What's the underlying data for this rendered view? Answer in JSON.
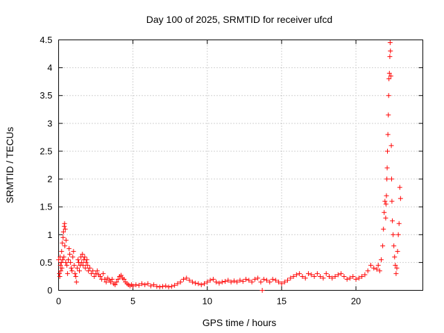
{
  "chart_data": {
    "type": "scatter",
    "title": "Day 100 of 2025, SRMTID for receiver ufcd",
    "xlabel": "GPS time / hours",
    "ylabel": "SRMTID / TECUs",
    "xlim": [
      0,
      24.5
    ],
    "ylim": [
      0,
      4.5
    ],
    "xticks": [
      0,
      5,
      10,
      15,
      20
    ],
    "xtick_labels": [
      "0",
      "5",
      "10",
      "15",
      "20"
    ],
    "yticks": [
      0,
      0.5,
      1,
      1.5,
      2,
      2.5,
      3,
      3.5,
      4,
      4.5
    ],
    "ytick_labels": [
      "0",
      "0.5",
      "1",
      "1.5",
      "2",
      "2.5",
      "3",
      "3.5",
      "4",
      "4.5"
    ],
    "grid": true,
    "marker": "+",
    "color": "#ff0000",
    "series": [
      {
        "name": "SRMTID",
        "points": [
          [
            0.0,
            0.55
          ],
          [
            0.05,
            0.3
          ],
          [
            0.08,
            0.25
          ],
          [
            0.1,
            0.6
          ],
          [
            0.12,
            0.45
          ],
          [
            0.15,
            0.35
          ],
          [
            0.18,
            0.5
          ],
          [
            0.2,
            0.7
          ],
          [
            0.22,
            0.4
          ],
          [
            0.25,
            0.85
          ],
          [
            0.28,
            0.55
          ],
          [
            0.3,
            0.95
          ],
          [
            0.32,
            1.05
          ],
          [
            0.35,
            0.6
          ],
          [
            0.38,
            1.15
          ],
          [
            0.4,
            1.2
          ],
          [
            0.42,
            0.8
          ],
          [
            0.45,
            1.1
          ],
          [
            0.48,
            0.5
          ],
          [
            0.5,
            0.9
          ],
          [
            0.55,
            0.45
          ],
          [
            0.6,
            0.3
          ],
          [
            0.65,
            0.55
          ],
          [
            0.7,
            0.75
          ],
          [
            0.75,
            0.65
          ],
          [
            0.8,
            0.5
          ],
          [
            0.85,
            0.4
          ],
          [
            0.9,
            0.35
          ],
          [
            0.95,
            0.6
          ],
          [
            1.0,
            0.7
          ],
          [
            1.05,
            0.45
          ],
          [
            1.1,
            0.3
          ],
          [
            1.15,
            0.25
          ],
          [
            1.2,
            0.15
          ],
          [
            1.25,
            0.4
          ],
          [
            1.3,
            0.55
          ],
          [
            1.35,
            0.5
          ],
          [
            1.4,
            0.35
          ],
          [
            1.45,
            0.45
          ],
          [
            1.5,
            0.6
          ],
          [
            1.55,
            0.5
          ],
          [
            1.6,
            0.65
          ],
          [
            1.65,
            0.45
          ],
          [
            1.7,
            0.55
          ],
          [
            1.75,
            0.6
          ],
          [
            1.8,
            0.4
          ],
          [
            1.85,
            0.5
          ],
          [
            1.9,
            0.55
          ],
          [
            1.95,
            0.45
          ],
          [
            2.0,
            0.35
          ],
          [
            2.1,
            0.4
          ],
          [
            2.2,
            0.3
          ],
          [
            2.3,
            0.35
          ],
          [
            2.4,
            0.25
          ],
          [
            2.5,
            0.3
          ],
          [
            2.6,
            0.35
          ],
          [
            2.7,
            0.28
          ],
          [
            2.8,
            0.25
          ],
          [
            2.9,
            0.2
          ],
          [
            3.0,
            0.3
          ],
          [
            3.1,
            0.2
          ],
          [
            3.2,
            0.15
          ],
          [
            3.3,
            0.22
          ],
          [
            3.4,
            0.18
          ],
          [
            3.5,
            0.15
          ],
          [
            3.6,
            0.2
          ],
          [
            3.7,
            0.12
          ],
          [
            3.8,
            0.1
          ],
          [
            3.9,
            0.15
          ],
          [
            4.0,
            0.2
          ],
          [
            4.1,
            0.25
          ],
          [
            4.2,
            0.27
          ],
          [
            4.3,
            0.22
          ],
          [
            4.4,
            0.2
          ],
          [
            4.5,
            0.15
          ],
          [
            4.6,
            0.12
          ],
          [
            4.7,
            0.1
          ],
          [
            4.8,
            0.08
          ],
          [
            4.9,
            0.1
          ],
          [
            5.0,
            0.08
          ],
          [
            5.2,
            0.1
          ],
          [
            5.4,
            0.09
          ],
          [
            5.6,
            0.12
          ],
          [
            5.8,
            0.1
          ],
          [
            6.0,
            0.12
          ],
          [
            6.2,
            0.08
          ],
          [
            6.4,
            0.1
          ],
          [
            6.6,
            0.07
          ],
          [
            6.8,
            0.06
          ],
          [
            7.0,
            0.07
          ],
          [
            7.2,
            0.08
          ],
          [
            7.4,
            0.06
          ],
          [
            7.6,
            0.07
          ],
          [
            7.8,
            0.09
          ],
          [
            8.0,
            0.12
          ],
          [
            8.2,
            0.15
          ],
          [
            8.4,
            0.2
          ],
          [
            8.6,
            0.22
          ],
          [
            8.8,
            0.18
          ],
          [
            9.0,
            0.15
          ],
          [
            9.2,
            0.13
          ],
          [
            9.4,
            0.12
          ],
          [
            9.6,
            0.1
          ],
          [
            9.8,
            0.12
          ],
          [
            10.0,
            0.15
          ],
          [
            10.2,
            0.18
          ],
          [
            10.4,
            0.2
          ],
          [
            10.6,
            0.15
          ],
          [
            10.8,
            0.13
          ],
          [
            11.0,
            0.15
          ],
          [
            11.2,
            0.16
          ],
          [
            11.4,
            0.18
          ],
          [
            11.6,
            0.15
          ],
          [
            11.8,
            0.17
          ],
          [
            12.0,
            0.15
          ],
          [
            12.2,
            0.18
          ],
          [
            12.4,
            0.16
          ],
          [
            12.6,
            0.2
          ],
          [
            12.8,
            0.18
          ],
          [
            13.0,
            0.15
          ],
          [
            13.2,
            0.2
          ],
          [
            13.4,
            0.22
          ],
          [
            13.6,
            0.15
          ],
          [
            13.7,
            0.0
          ],
          [
            13.8,
            0.2
          ],
          [
            14.0,
            0.18
          ],
          [
            14.2,
            0.15
          ],
          [
            14.4,
            0.2
          ],
          [
            14.6,
            0.18
          ],
          [
            14.8,
            0.15
          ],
          [
            15.0,
            0.12
          ],
          [
            15.2,
            0.15
          ],
          [
            15.4,
            0.18
          ],
          [
            15.6,
            0.22
          ],
          [
            15.8,
            0.25
          ],
          [
            16.0,
            0.28
          ],
          [
            16.2,
            0.3
          ],
          [
            16.4,
            0.25
          ],
          [
            16.6,
            0.22
          ],
          [
            16.8,
            0.3
          ],
          [
            17.0,
            0.28
          ],
          [
            17.2,
            0.25
          ],
          [
            17.4,
            0.3
          ],
          [
            17.6,
            0.25
          ],
          [
            17.8,
            0.22
          ],
          [
            18.0,
            0.3
          ],
          [
            18.2,
            0.25
          ],
          [
            18.4,
            0.22
          ],
          [
            18.6,
            0.25
          ],
          [
            18.8,
            0.28
          ],
          [
            19.0,
            0.3
          ],
          [
            19.2,
            0.25
          ],
          [
            19.4,
            0.2
          ],
          [
            19.6,
            0.22
          ],
          [
            19.8,
            0.25
          ],
          [
            20.0,
            0.2
          ],
          [
            20.2,
            0.22
          ],
          [
            20.4,
            0.25
          ],
          [
            20.6,
            0.28
          ],
          [
            20.8,
            0.35
          ],
          [
            21.0,
            0.45
          ],
          [
            21.2,
            0.4
          ],
          [
            21.4,
            0.38
          ],
          [
            21.5,
            0.45
          ],
          [
            21.6,
            0.35
          ],
          [
            21.7,
            0.55
          ],
          [
            21.8,
            0.8
          ],
          [
            21.85,
            1.1
          ],
          [
            21.9,
            1.4
          ],
          [
            21.95,
            1.6
          ],
          [
            22.0,
            1.3
          ],
          [
            22.02,
            1.55
          ],
          [
            22.05,
            1.7
          ],
          [
            22.08,
            2.0
          ],
          [
            22.1,
            2.2
          ],
          [
            22.12,
            2.5
          ],
          [
            22.15,
            2.8
          ],
          [
            22.18,
            3.15
          ],
          [
            22.2,
            3.5
          ],
          [
            22.22,
            3.8
          ],
          [
            22.25,
            3.9
          ],
          [
            22.28,
            4.2
          ],
          [
            22.3,
            4.45
          ],
          [
            22.32,
            4.3
          ],
          [
            22.35,
            3.85
          ],
          [
            22.38,
            2.6
          ],
          [
            22.4,
            2.0
          ],
          [
            22.42,
            1.6
          ],
          [
            22.45,
            1.25
          ],
          [
            22.5,
            1.0
          ],
          [
            22.55,
            0.8
          ],
          [
            22.6,
            0.6
          ],
          [
            22.65,
            0.45
          ],
          [
            22.7,
            0.3
          ],
          [
            22.75,
            0.4
          ],
          [
            22.8,
            0.7
          ],
          [
            22.85,
            1.0
          ],
          [
            22.9,
            1.2
          ],
          [
            22.95,
            1.85
          ],
          [
            23.0,
            1.65
          ]
        ]
      }
    ]
  }
}
